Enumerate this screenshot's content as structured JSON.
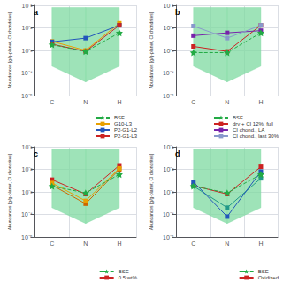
{
  "chart_data": [
    {
      "type": "line",
      "title": "a",
      "ylabel": "Abundances [g/g-planet, CI chondrites]",
      "categories": [
        "C",
        "N",
        "H"
      ],
      "log": "y",
      "grid": true,
      "legend": "lower right",
      "ylim": [
        1e-05,
        0.1
      ],
      "yticks": [
        {
          "value": 1e-05,
          "label": "10⁻⁵"
        },
        {
          "value": 0.0001,
          "label": "10⁻⁴"
        },
        {
          "value": 0.001,
          "label": "10⁻³"
        },
        {
          "value": 0.01,
          "label": "10⁻²"
        },
        {
          "value": 0.1,
          "label": "10⁻¹"
        }
      ],
      "band": {
        "lower": [
          0.0002,
          4e-05,
          0.0002
        ],
        "upper": [
          0.08,
          0.08,
          0.08
        ],
        "color": "#7dd9a0"
      },
      "series": [
        {
          "name": "BSE",
          "color": "#22aa44",
          "marker": "star",
          "line_style": "dashed",
          "values": [
            0.0018,
            0.0009,
            0.006
          ]
        },
        {
          "name": "G10-L3",
          "color": "#e8a000",
          "marker": "square",
          "line_style": "solid",
          "values": [
            0.0025,
            0.001,
            0.016
          ]
        },
        {
          "name": "P2-G1-L2",
          "color": "#2255bb",
          "marker": "square",
          "line_style": "solid",
          "values": [
            0.0024,
            0.0035,
            0.013
          ]
        },
        {
          "name": "P2-G1-L3",
          "color": "#cc2222",
          "marker": "square",
          "line_style": "solid",
          "values": [
            0.0019,
            0.0009,
            0.013
          ]
        }
      ]
    },
    {
      "type": "line",
      "title": "b",
      "ylabel": "Abundances [g/g-planet, CI chondrites]",
      "categories": [
        "C",
        "N",
        "H"
      ],
      "log": "y",
      "grid": true,
      "legend": "lower right",
      "ylim": [
        1e-05,
        0.1
      ],
      "yticks": [
        {
          "value": 1e-05,
          "label": "10⁻⁵"
        },
        {
          "value": 0.0001,
          "label": "10⁻⁴"
        },
        {
          "value": 0.001,
          "label": "10⁻³"
        },
        {
          "value": 0.01,
          "label": "10⁻²"
        },
        {
          "value": 0.1,
          "label": "10⁻¹"
        }
      ],
      "band": {
        "lower": [
          0.0002,
          4e-05,
          0.0002
        ],
        "upper": [
          0.08,
          0.08,
          0.08
        ],
        "color": "#7dd9a0"
      },
      "series": [
        {
          "name": "BSE",
          "color": "#22aa44",
          "marker": "star",
          "line_style": "dashed",
          "values": [
            0.0008,
            0.0008,
            0.006
          ]
        },
        {
          "name": "dry + CI 12%, full",
          "color": "#cc2222",
          "marker": "square",
          "line_style": "solid",
          "values": [
            0.0015,
            0.0009,
            0.013
          ]
        },
        {
          "name": "CI chond., LA",
          "color": "#7722aa",
          "marker": "square",
          "line_style": "solid",
          "values": [
            0.0045,
            0.006,
            0.0075
          ]
        },
        {
          "name": "CI chond., last 30%",
          "color": "#8899cc",
          "marker": "square",
          "line_style": "solid",
          "values": [
            0.012,
            0.0035,
            0.013
          ]
        }
      ]
    },
    {
      "type": "line",
      "title": "c",
      "ylabel": "Abundances [g/g-planet, CI chondrites]",
      "categories": [
        "C",
        "N",
        "H"
      ],
      "log": "y",
      "grid": true,
      "legend": "lower right",
      "ylim": [
        1e-05,
        0.1
      ],
      "yticks": [
        {
          "value": 1e-05,
          "label": "10⁻⁵"
        },
        {
          "value": 0.0001,
          "label": "10⁻⁴"
        },
        {
          "value": 0.001,
          "label": "10⁻³"
        },
        {
          "value": 0.01,
          "label": "10⁻²"
        },
        {
          "value": 0.1,
          "label": "10⁻¹"
        }
      ],
      "band": {
        "lower": [
          0.0002,
          4e-05,
          0.0002
        ],
        "upper": [
          0.08,
          0.08,
          0.08
        ],
        "color": "#7dd9a0"
      },
      "series": [
        {
          "name": "BSE",
          "color": "#22aa44",
          "marker": "star",
          "line_style": "dashed",
          "values": [
            0.0018,
            0.0009,
            0.006
          ]
        },
        {
          "name": "0.5 wt%",
          "color": "#cc2222",
          "marker": "square",
          "line_style": "solid",
          "values": [
            0.0035,
            0.0008,
            0.015
          ]
        },
        {
          "color": "#cc6600",
          "marker": "square",
          "line_style": "solid",
          "values": [
            0.002,
            0.0003,
            0.01
          ]
        },
        {
          "color": "#e8a000",
          "marker": "square",
          "line_style": "solid",
          "values": [
            0.0025,
            0.0004,
            0.011
          ]
        }
      ]
    },
    {
      "type": "line",
      "title": "d",
      "ylabel": "Abundances [g/g-planet, CI chondrites]",
      "categories": [
        "C",
        "N",
        "H"
      ],
      "log": "y",
      "grid": true,
      "legend": "lower right",
      "ylim": [
        1e-05,
        0.1
      ],
      "yticks": [
        {
          "value": 1e-05,
          "label": "10⁻⁵"
        },
        {
          "value": 0.0001,
          "label": "10⁻⁴"
        },
        {
          "value": 0.001,
          "label": "10⁻³"
        },
        {
          "value": 0.01,
          "label": "10⁻²"
        },
        {
          "value": 0.1,
          "label": "10⁻¹"
        }
      ],
      "band": {
        "lower": [
          0.0002,
          4e-05,
          0.0002
        ],
        "upper": [
          0.08,
          0.08,
          0.08
        ],
        "color": "#7dd9a0"
      },
      "series": [
        {
          "name": "BSE",
          "color": "#22aa44",
          "marker": "star",
          "line_style": "dashed",
          "values": [
            0.0018,
            0.0009,
            0.006
          ]
        },
        {
          "name": "Oxidized",
          "color": "#cc2222",
          "marker": "square",
          "line_style": "solid",
          "values": [
            0.0019,
            0.0008,
            0.013
          ]
        },
        {
          "color": "#229988",
          "marker": "square",
          "line_style": "solid",
          "values": [
            0.0018,
            0.0002,
            0.004
          ]
        },
        {
          "color": "#2255bb",
          "marker": "square",
          "line_style": "solid",
          "values": [
            0.0028,
            8e-05,
            0.008
          ]
        }
      ]
    }
  ]
}
